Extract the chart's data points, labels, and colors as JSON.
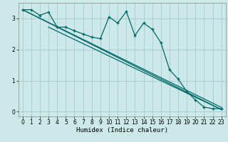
{
  "xlabel": "Humidex (Indice chaleur)",
  "ylabel": "",
  "bg_color": "#cce8e8",
  "grid_color": "#aad0d0",
  "line_color": "#006868",
  "xlim": [
    -0.5,
    23.5
  ],
  "ylim": [
    -0.15,
    3.5
  ],
  "xticks": [
    0,
    1,
    2,
    3,
    4,
    5,
    6,
    7,
    8,
    9,
    10,
    11,
    12,
    13,
    14,
    15,
    16,
    17,
    18,
    19,
    20,
    21,
    22,
    23
  ],
  "yticks": [
    0,
    1,
    2,
    3
  ],
  "jagged_x": [
    0,
    1,
    2,
    3,
    4,
    5,
    6,
    7,
    8,
    9,
    10,
    11,
    12,
    13,
    14,
    15,
    16,
    17,
    18,
    19,
    20,
    21,
    22,
    23
  ],
  "jagged_y": [
    3.28,
    3.28,
    3.1,
    3.2,
    2.72,
    2.72,
    2.6,
    2.5,
    2.4,
    2.35,
    3.05,
    2.85,
    3.22,
    2.45,
    2.85,
    2.65,
    2.22,
    1.35,
    1.05,
    0.65,
    0.38,
    0.15,
    0.1,
    0.1
  ],
  "line1_x": [
    0,
    23
  ],
  "line1_y": [
    3.28,
    0.07
  ],
  "line2_x": [
    0,
    23
  ],
  "line2_y": [
    3.28,
    0.14
  ],
  "line3_x": [
    3,
    23
  ],
  "line3_y": [
    2.72,
    0.07
  ]
}
